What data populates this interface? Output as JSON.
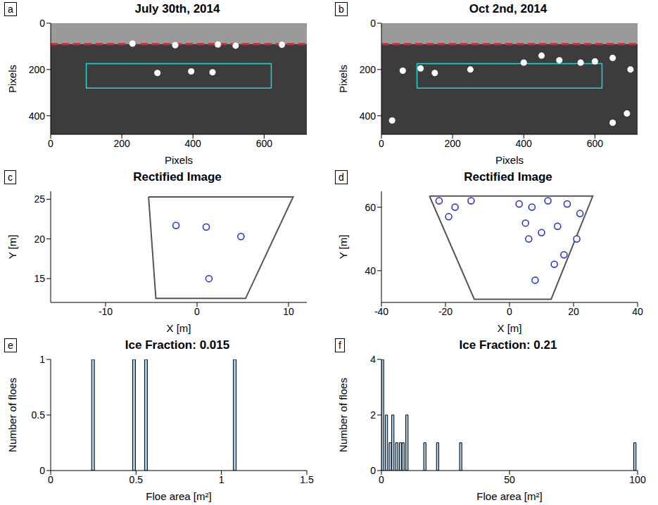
{
  "chart_data": [
    {
      "panel": "a",
      "type": "image",
      "title": "July 30th, 2014",
      "x_label": "Pixels",
      "y_label": "Pixels",
      "xlim": [
        0,
        720
      ],
      "xticks": [
        0,
        200,
        400,
        600
      ],
      "ylim": [
        0,
        480
      ],
      "yticks": [
        0,
        200,
        400
      ],
      "horizon": 90,
      "box": {
        "x": [
          100,
          620
        ],
        "y": [
          175,
          280
        ]
      },
      "floes": {
        "x": [
          230,
          350,
          470,
          520,
          650,
          300,
          395,
          455
        ],
        "y": [
          88,
          95,
          92,
          97,
          93,
          215,
          208,
          212
        ]
      }
    },
    {
      "panel": "b",
      "type": "image",
      "title": "Oct 2nd, 2014",
      "x_label": "Pixels",
      "y_label": "Pixels",
      "xlim": [
        0,
        720
      ],
      "xticks": [
        0,
        200,
        400,
        600
      ],
      "ylim": [
        0,
        480
      ],
      "yticks": [
        0,
        200,
        400
      ],
      "horizon": 90,
      "box": {
        "x": [
          100,
          620
        ],
        "y": [
          175,
          280
        ]
      },
      "floes": {
        "x": [
          60,
          110,
          150,
          250,
          400,
          450,
          500,
          560,
          600,
          650,
          700,
          30,
          650,
          690
        ],
        "y": [
          205,
          195,
          215,
          200,
          170,
          140,
          160,
          170,
          165,
          150,
          200,
          420,
          430,
          390
        ]
      }
    },
    {
      "panel": "c",
      "type": "scatter",
      "title": "Rectified Image",
      "x_label": "X [m]",
      "y_label": "Y [m]",
      "xlim": [
        -16,
        12
      ],
      "xticks": [
        -10,
        0,
        10
      ],
      "ylim": [
        12,
        26
      ],
      "yticks": [
        15,
        20,
        25
      ],
      "field_of_view": {
        "x": [
          -5.3,
          10.5,
          5.3,
          -4.5,
          -5.3
        ],
        "y": [
          25.3,
          25.3,
          12.5,
          12.5,
          25.3
        ]
      },
      "floes": {
        "x": [
          -2.3,
          1,
          4.8,
          1.3
        ],
        "y": [
          21.7,
          21.5,
          20.3,
          15
        ]
      }
    },
    {
      "panel": "d",
      "type": "scatter",
      "title": "Rectified Image",
      "x_label": "X [m]",
      "y_label": "Y [m]",
      "xlim": [
        -40,
        40
      ],
      "xticks": [
        -40,
        -20,
        0,
        20,
        40
      ],
      "ylim": [
        30,
        65
      ],
      "yticks": [
        40,
        60
      ],
      "field_of_view": {
        "x": [
          -25,
          26,
          13,
          -11,
          -25
        ],
        "y": [
          63.5,
          63.5,
          31,
          31,
          63.5
        ]
      },
      "floes": {
        "x": [
          -22,
          -17,
          -12,
          -19,
          3,
          7,
          12,
          18,
          22,
          5,
          10,
          15,
          17,
          14,
          8,
          6,
          21
        ],
        "y": [
          62,
          60,
          62,
          57,
          61,
          60,
          62,
          61,
          58,
          55,
          52,
          54,
          45,
          42,
          37,
          50,
          50
        ]
      }
    },
    {
      "panel": "e",
      "type": "bar",
      "title": "Ice Fraction: 0.015",
      "x_label": "Floe area [m²]",
      "y_label": "Number of floes",
      "x": [
        0.25,
        0.49,
        0.56,
        1.08
      ],
      "values": [
        1,
        1,
        1,
        1
      ],
      "xlim": [
        0,
        1.5
      ],
      "xticks": [
        0,
        0.5,
        1,
        1.5
      ],
      "ylim": [
        0,
        1
      ],
      "yticks": [
        0,
        0.5,
        1
      ],
      "color": "#a9cde8"
    },
    {
      "panel": "f",
      "type": "bar",
      "title": "Ice Fraction: 0.21",
      "x_label": "Floe area [m²]",
      "y_label": "Number of floes",
      "x": [
        0.5,
        2,
        3.5,
        4.5,
        6,
        7.5,
        8.5,
        10,
        17,
        22,
        31,
        99
      ],
      "values": [
        4,
        2,
        1,
        2,
        1,
        1,
        1,
        2,
        1,
        1,
        1,
        1
      ],
      "xlim": [
        0,
        100
      ],
      "xticks": [
        0,
        50,
        100
      ],
      "ylim": [
        0,
        4
      ],
      "yticks": [
        0,
        2,
        4
      ],
      "color": "#a9cde8"
    }
  ]
}
